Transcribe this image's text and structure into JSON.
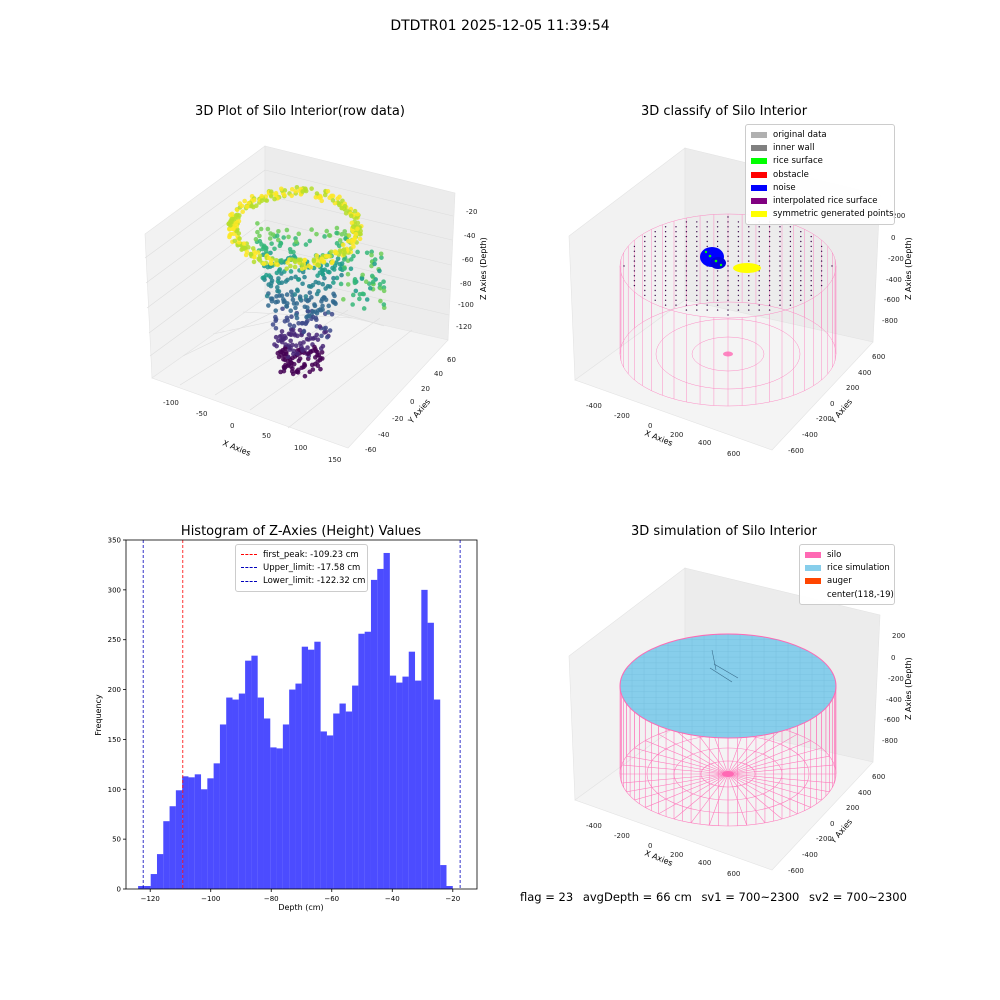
{
  "figure_title": "DTDTR01 2025-12-05 11:39:54",
  "panels": {
    "raw": {
      "title": "3D Plot of Silo Interior(row data)",
      "xlabel": "X Axies",
      "ylabel": "Y Axies",
      "zlabel": "Z Axies (Depth)",
      "xticks": [
        "-100",
        "-50",
        "0",
        "50",
        "100",
        "150"
      ],
      "yticks": [
        "-60",
        "-40",
        "-20",
        "0",
        "20",
        "40",
        "60"
      ],
      "zticks": [
        "-20",
        "-40",
        "-60",
        "-80",
        "-100",
        "-120"
      ]
    },
    "classify": {
      "title": "3D classify of Silo Interior",
      "xlabel": "X Axies",
      "ylabel": "Y Axies",
      "zlabel": "Z Axies (Depth)",
      "xticks": [
        "-400",
        "-200",
        "0",
        "200",
        "400",
        "600"
      ],
      "yticks": [
        "-600",
        "-400",
        "-200",
        "0",
        "200",
        "400",
        "600"
      ],
      "zticks": [
        "200",
        "0",
        "-200",
        "-400",
        "-600",
        "-800"
      ],
      "legend": [
        {
          "label": "original data",
          "color": "#b0b0b0"
        },
        {
          "label": "inner wall",
          "color": "#808080"
        },
        {
          "label": "rice surface",
          "color": "#00ff00"
        },
        {
          "label": "obstacle",
          "color": "#ff0000"
        },
        {
          "label": "noise",
          "color": "#0000ff"
        },
        {
          "label": "interpolated rice surface",
          "color": "#800080"
        },
        {
          "label": "symmetric generated points",
          "color": "#ffff00"
        }
      ]
    },
    "simulation": {
      "title": "3D simulation of Silo Interior",
      "xlabel": "X Axies",
      "ylabel": "Y Axies",
      "zlabel": "Z Axies (Depth)",
      "xticks": [
        "-400",
        "-200",
        "0",
        "200",
        "400",
        "600"
      ],
      "yticks": [
        "-600",
        "-400",
        "-200",
        "0",
        "200",
        "400",
        "600"
      ],
      "zticks": [
        "200",
        "0",
        "-200",
        "-400",
        "-600",
        "-800"
      ],
      "legend": [
        {
          "label": "silo",
          "color": "#ff69b4"
        },
        {
          "label": "rice simulation",
          "color": "#87ceeb"
        },
        {
          "label": "auger",
          "color": "#ff4500"
        },
        {
          "label": "center(118,-19)",
          "color": ""
        }
      ]
    }
  },
  "status": {
    "flag": "flag = 23",
    "avg_depth": "avgDepth = 66 cm",
    "sv1": "sv1 = 700~2300",
    "sv2": "sv2 = 700~2300"
  },
  "chart_data": {
    "type": "bar",
    "title": "Histogram of Z-Axies (Height) Values",
    "xlabel": "Depth (cm)",
    "ylabel": "Frequency",
    "xlim": [
      -128,
      -12
    ],
    "ylim": [
      0,
      350
    ],
    "xticks": [
      -120,
      -100,
      -80,
      -60,
      -40,
      -20
    ],
    "yticks": [
      0,
      50,
      100,
      150,
      200,
      250,
      300,
      350
    ],
    "bar_color": "#0000ff",
    "bins_start": -124,
    "bin_width": 2.08,
    "values": [
      3,
      3,
      15,
      35,
      68,
      83,
      99,
      113,
      112,
      115,
      100,
      111,
      126,
      165,
      192,
      190,
      196,
      229,
      234,
      192,
      171,
      142,
      141,
      165,
      200,
      206,
      243,
      240,
      248,
      158,
      154,
      176,
      186,
      178,
      204,
      256,
      258,
      310,
      321,
      337,
      214,
      207,
      213,
      238,
      209,
      300,
      267,
      190,
      24,
      3
    ],
    "lines": [
      {
        "label": "first_peak: -109.23 cm",
        "x": -109.23,
        "color": "#ff0000"
      },
      {
        "label": "Upper_limit: -17.58 cm",
        "x": -17.58,
        "color": "#0000bb"
      },
      {
        "label": "Lower_limit: -122.32 cm",
        "x": -122.32,
        "color": "#0000bb"
      }
    ]
  }
}
